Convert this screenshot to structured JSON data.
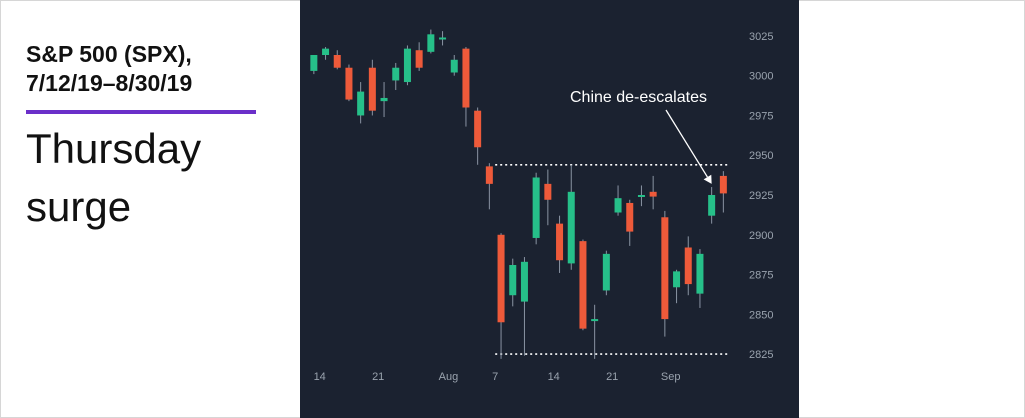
{
  "header": {
    "line1": "S&P 500 (SPX),",
    "line2": "7/12/19–8/30/19",
    "subtitle_line1": "Thursday",
    "subtitle_line2": "surge"
  },
  "colors": {
    "up": "#26c089",
    "down": "#ee5a3a",
    "chart_bg": "#1b2230",
    "accent_rule": "#6b2fc9"
  },
  "chart_data": {
    "type": "candlestick",
    "title": "",
    "ylim": [
      2815,
      3035
    ],
    "y_ticks": [
      3025,
      3000,
      2975,
      2950,
      2925,
      2900,
      2875,
      2850,
      2825
    ],
    "x_tick_labels": [
      "14",
      "21",
      "Aug",
      "7",
      "14",
      "21",
      "Sep"
    ],
    "x_tick_positions": [
      1.5,
      6.5,
      12.5,
      16.5,
      21.5,
      26.5,
      31.5
    ],
    "grid": false,
    "candles": [
      {
        "x": 1,
        "open": 3003,
        "high": 3013,
        "low": 3001,
        "close": 3013
      },
      {
        "x": 2,
        "open": 3013,
        "high": 3018,
        "low": 3010,
        "close": 3017
      },
      {
        "x": 3,
        "open": 3013,
        "high": 3016,
        "low": 3004,
        "close": 3005
      },
      {
        "x": 4,
        "open": 3005,
        "high": 3007,
        "low": 2984,
        "close": 2985
      },
      {
        "x": 5,
        "open": 2975,
        "high": 2996,
        "low": 2970,
        "close": 2990
      },
      {
        "x": 6,
        "open": 3005,
        "high": 3010,
        "low": 2975,
        "close": 2978
      },
      {
        "x": 7,
        "open": 2984,
        "high": 2996,
        "low": 2974,
        "close": 2986
      },
      {
        "x": 8,
        "open": 2997,
        "high": 3008,
        "low": 2991,
        "close": 3005
      },
      {
        "x": 9,
        "open": 2996,
        "high": 3019,
        "low": 2994,
        "close": 3017
      },
      {
        "x": 10,
        "open": 3016,
        "high": 3021,
        "low": 3003,
        "close": 3005
      },
      {
        "x": 11,
        "open": 3015,
        "high": 3029,
        "low": 3014,
        "close": 3026
      },
      {
        "x": 12,
        "open": 3023,
        "high": 3028,
        "low": 3019,
        "close": 3024
      },
      {
        "x": 13,
        "open": 3002,
        "high": 3013,
        "low": 3000,
        "close": 3010
      },
      {
        "x": 14,
        "open": 3017,
        "high": 3018,
        "low": 2968,
        "close": 2980
      },
      {
        "x": 15,
        "open": 2978,
        "high": 2980,
        "low": 2944,
        "close": 2955
      },
      {
        "x": 16,
        "open": 2943,
        "high": 2945,
        "low": 2916,
        "close": 2932
      },
      {
        "x": 17,
        "open": 2900,
        "high": 2901,
        "low": 2822,
        "close": 2845
      },
      {
        "x": 18,
        "open": 2862,
        "high": 2885,
        "low": 2855,
        "close": 2881
      },
      {
        "x": 19,
        "open": 2858,
        "high": 2886,
        "low": 2824,
        "close": 2883
      },
      {
        "x": 20,
        "open": 2898,
        "high": 2939,
        "low": 2894,
        "close": 2936
      },
      {
        "x": 21,
        "open": 2932,
        "high": 2941,
        "low": 2906,
        "close": 2922
      },
      {
        "x": 22,
        "open": 2907,
        "high": 2912,
        "low": 2876,
        "close": 2884
      },
      {
        "x": 23,
        "open": 2882,
        "high": 2944,
        "low": 2878,
        "close": 2927
      },
      {
        "x": 24,
        "open": 2896,
        "high": 2897,
        "low": 2840,
        "close": 2841
      },
      {
        "x": 25,
        "open": 2847,
        "high": 2856,
        "low": 2822,
        "close": 2847
      },
      {
        "x": 26,
        "open": 2865,
        "high": 2890,
        "low": 2862,
        "close": 2888
      },
      {
        "x": 27,
        "open": 2914,
        "high": 2931,
        "low": 2912,
        "close": 2923
      },
      {
        "x": 28,
        "open": 2920,
        "high": 2922,
        "low": 2893,
        "close": 2902
      },
      {
        "x": 29,
        "open": 2924,
        "high": 2931,
        "low": 2918,
        "close": 2925
      },
      {
        "x": 30,
        "open": 2927,
        "high": 2937,
        "low": 2916,
        "close": 2924
      },
      {
        "x": 31,
        "open": 2911,
        "high": 2915,
        "low": 2836,
        "close": 2847
      },
      {
        "x": 32,
        "open": 2867,
        "high": 2878,
        "low": 2857,
        "close": 2877
      },
      {
        "x": 33,
        "open": 2892,
        "high": 2899,
        "low": 2862,
        "close": 2869
      },
      {
        "x": 34,
        "open": 2863,
        "high": 2891,
        "low": 2854,
        "close": 2888
      },
      {
        "x": 35,
        "open": 2912,
        "high": 2930,
        "low": 2907,
        "close": 2925
      },
      {
        "x": 36,
        "open": 2937,
        "high": 2940,
        "low": 2914,
        "close": 2926
      }
    ],
    "reference_lines": [
      {
        "label": "",
        "y": 2944,
        "x_from": 16.5,
        "x_to": 36.5,
        "style": "dotted"
      },
      {
        "label": "",
        "y": 2825,
        "x_from": 16.5,
        "x_to": 36.5,
        "style": "dotted"
      }
    ],
    "annotations": [
      {
        "text": "Chine de-escalates",
        "arrow_to": {
          "x": 35,
          "y": 2932
        }
      }
    ]
  }
}
